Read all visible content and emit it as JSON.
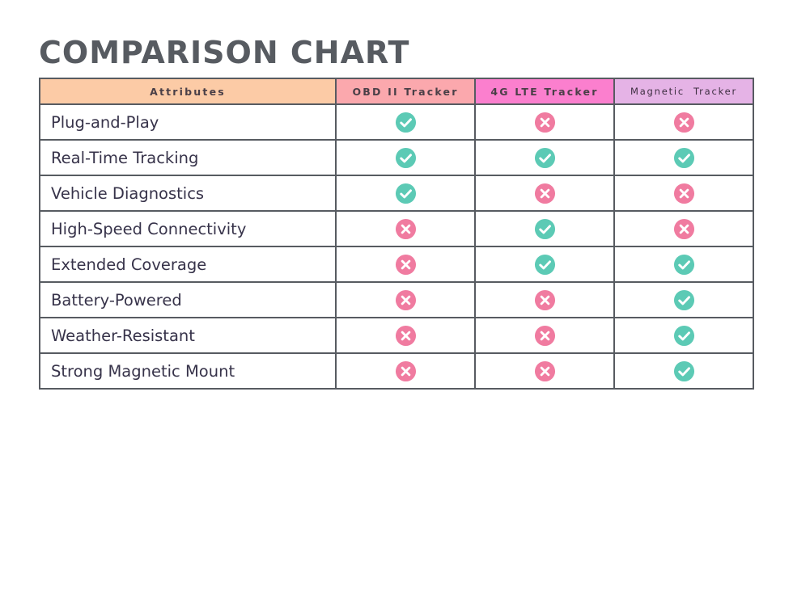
{
  "title": "COMPARISON CHART",
  "table": {
    "headers": [
      "Attributes",
      "OBD II Tracker",
      "4G LTE Tracker",
      "Magnetic  Tracker"
    ],
    "header_colors": [
      "#fccba6",
      "#fba8ad",
      "#fb7fce",
      "#e5b3e6"
    ],
    "rows": [
      {
        "attribute": "Plug-and-Play",
        "values": [
          true,
          false,
          false
        ]
      },
      {
        "attribute": "Real-Time Tracking",
        "values": [
          true,
          true,
          true
        ]
      },
      {
        "attribute": "Vehicle Diagnostics",
        "values": [
          true,
          false,
          false
        ]
      },
      {
        "attribute": "High-Speed Connectivity",
        "values": [
          false,
          true,
          false
        ]
      },
      {
        "attribute": "Extended Coverage",
        "values": [
          false,
          true,
          true
        ]
      },
      {
        "attribute": "Battery-Powered",
        "values": [
          false,
          false,
          true
        ]
      },
      {
        "attribute": "Weather-Resistant",
        "values": [
          false,
          false,
          true
        ]
      },
      {
        "attribute": "Strong Magnetic Mount",
        "values": [
          false,
          false,
          true
        ]
      }
    ]
  },
  "icons": {
    "yes": {
      "name": "check-circle-icon",
      "color": "#5ccab5"
    },
    "no": {
      "name": "x-circle-icon",
      "color": "#f07ba0"
    }
  },
  "colors": {
    "border": "#575b61",
    "title": "#575b61",
    "text": "#37334a"
  }
}
